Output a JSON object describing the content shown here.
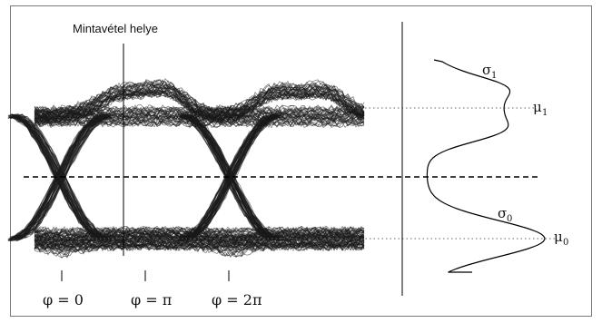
{
  "figure": {
    "sampling_label": "Mintavétel helye",
    "phase_labels": [
      "φ = 0",
      "φ = π",
      "φ = 2π"
    ],
    "sigma1": "σ",
    "sigma1_sub": "1",
    "sigma0": "σ",
    "sigma0_sub": "0",
    "mu1": "μ",
    "mu1_sub": "1",
    "mu0": "μ",
    "mu0_sub": "0"
  },
  "colors": {
    "trace": "#1a1a1a",
    "frame": "#7a7a7a",
    "background": "#ffffff"
  }
}
